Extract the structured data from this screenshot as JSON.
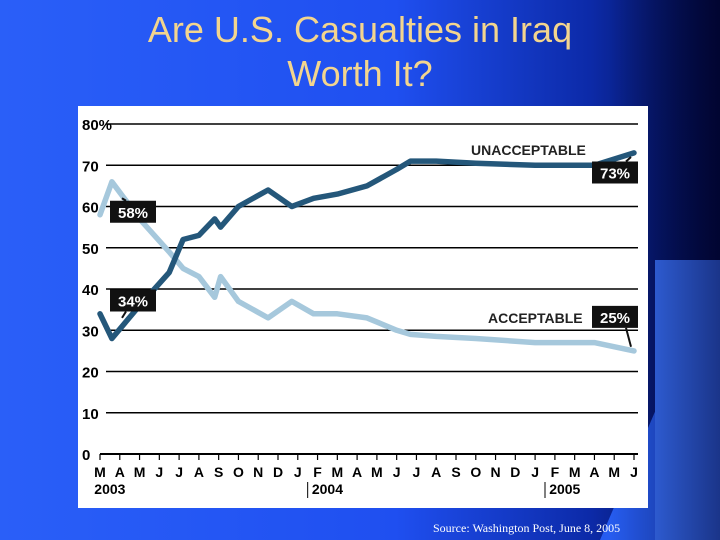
{
  "slide": {
    "title_line1": "Are U.S. Casualties in Iraq",
    "title_line2": "Worth It?",
    "source": "Source: Washington Post, June 8, 2005",
    "colors": {
      "title": "#f3d58e",
      "background": "#1f4ff0",
      "dark_line": "#24577a",
      "light_line": "#a6c8dc"
    }
  },
  "chart_data": {
    "type": "line",
    "title": "",
    "xlabel": "",
    "ylabel": "",
    "ylim": [
      0,
      80
    ],
    "y_ticks": [
      0,
      10,
      20,
      30,
      40,
      50,
      60,
      70,
      80
    ],
    "y_tick_labels": [
      "0",
      "10",
      "20",
      "30",
      "40",
      "50",
      "60",
      "70",
      "80%"
    ],
    "months": [
      "M",
      "A",
      "M",
      "J",
      "J",
      "A",
      "S",
      "O",
      "N",
      "D",
      "J",
      "F",
      "M",
      "A",
      "M",
      "J",
      "J",
      "A",
      "S",
      "O",
      "N",
      "D",
      "J",
      "F",
      "M",
      "A",
      "M",
      "J"
    ],
    "years": [
      {
        "label": "2003",
        "month_index": 0.5
      },
      {
        "label": "2004",
        "month_index": 11.5
      },
      {
        "label": "2005",
        "month_index": 23.5
      }
    ],
    "series": [
      {
        "name": "UNACCEPTABLE",
        "color": "#24577a",
        "end_label": "73%",
        "start_label": "34%",
        "points": [
          [
            0,
            34
          ],
          [
            0.6,
            28
          ],
          [
            2,
            36
          ],
          [
            3.5,
            44
          ],
          [
            4.2,
            52
          ],
          [
            5,
            53
          ],
          [
            5.8,
            57
          ],
          [
            6.1,
            55
          ],
          [
            7,
            60
          ],
          [
            8.5,
            64
          ],
          [
            9.7,
            60
          ],
          [
            10.8,
            62
          ],
          [
            12,
            63
          ],
          [
            13.5,
            65
          ],
          [
            15,
            69
          ],
          [
            15.7,
            71
          ],
          [
            17,
            71
          ],
          [
            19,
            70.5
          ],
          [
            22,
            70
          ],
          [
            25,
            70
          ],
          [
            27,
            73
          ]
        ]
      },
      {
        "name": "ACCEPTABLE",
        "color": "#a6c8dc",
        "end_label": "25%",
        "start_label": "58%",
        "points": [
          [
            0,
            58
          ],
          [
            0.6,
            66
          ],
          [
            2,
            57
          ],
          [
            3.5,
            49
          ],
          [
            4.2,
            45
          ],
          [
            5,
            43
          ],
          [
            5.8,
            38
          ],
          [
            6.1,
            43
          ],
          [
            7,
            37
          ],
          [
            8.5,
            33
          ],
          [
            9.7,
            37
          ],
          [
            10.8,
            34
          ],
          [
            12,
            34
          ],
          [
            13.5,
            33
          ],
          [
            15,
            30
          ],
          [
            15.7,
            29
          ],
          [
            17,
            28.5
          ],
          [
            19,
            28
          ],
          [
            22,
            27
          ],
          [
            25,
            27
          ],
          [
            27,
            25
          ]
        ]
      }
    ]
  }
}
